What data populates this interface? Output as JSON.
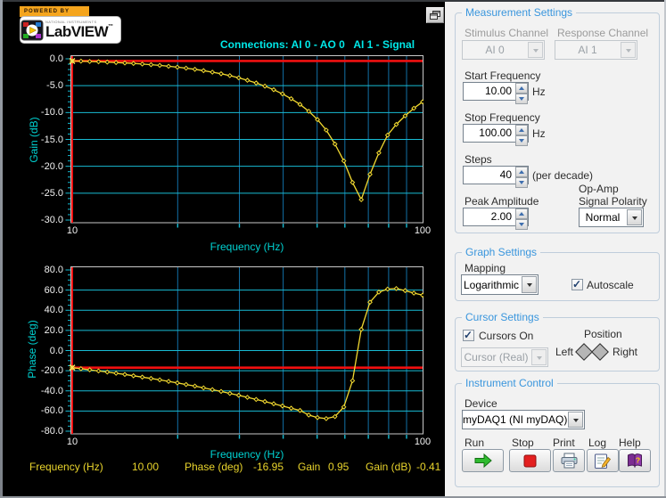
{
  "logo": {
    "powered_by": "POWERED BY",
    "brand_small": "NATIONAL INSTRUMENTS",
    "brand": "LabVIEW",
    "tm": "™"
  },
  "graph_title": "Connections: AI 0 - AO 0   AI 1 - Signal",
  "readout": {
    "freq_label": "Frequency (Hz)",
    "freq_value": "10.00",
    "phase_label": "Phase (deg)",
    "phase_value": "-16.95",
    "gain_label": "Gain",
    "gain_value": "0.95",
    "gain_db_label": "Gain (dB)",
    "gain_db_value": "-0.41"
  },
  "colors": {
    "grid_major": "#18bcd4",
    "grid_minor": "#1271a6",
    "frame": "#c9c9c9",
    "curve": "#f2d930",
    "cursor_red": "#f01010",
    "cross_yellow": "#ffe95c",
    "axis_text": "#f2f2f2",
    "cyan_label": "#00d2d2",
    "title_cyan": "#00e8e8",
    "readout_yellow": "#e9d42c",
    "panel_title_blue": "#3a96dd"
  },
  "chart_data": [
    {
      "type": "line",
      "name": "gain-bode-plot",
      "title": "Connections: AI 0 - AO 0   AI 1 - Signal",
      "xlabel": "Frequency (Hz)",
      "ylabel": "Gain (dB)",
      "xscale": "log",
      "xlim": [
        10,
        100
      ],
      "ylim": [
        -30,
        0
      ],
      "yticks": [
        0,
        -5,
        -10,
        -15,
        -20,
        -25,
        -30
      ],
      "ytick_labels": [
        "0.0",
        "-5.0",
        "-10.0",
        "-15.0",
        "-20.0",
        "-25.0",
        "-30.0"
      ],
      "ytick_minor_step": 1,
      "xticks": [
        10,
        100
      ],
      "xtick_labels": [
        "10",
        "100"
      ],
      "xgrid": [
        20,
        30,
        40,
        50,
        60,
        70,
        80,
        90
      ],
      "ygrid": [
        -5,
        -10,
        -15,
        -20,
        -25
      ],
      "grid": true,
      "legend_position": "none",
      "cursor": {
        "x": 10,
        "y": -0.41
      },
      "series": [
        {
          "name": "Gain",
          "x": [
            10,
            10.59,
            11.22,
            11.89,
            12.59,
            13.34,
            14.13,
            14.96,
            15.85,
            16.79,
            17.78,
            18.84,
            19.95,
            21.13,
            22.39,
            23.71,
            25.12,
            26.61,
            28.18,
            29.85,
            31.62,
            33.5,
            35.48,
            37.58,
            39.81,
            42.17,
            44.67,
            47.32,
            50.12,
            53.09,
            56.23,
            59.57,
            63.1,
            66.83,
            70.79,
            74.99,
            79.43,
            84.14,
            89.13,
            94.41,
            100
          ],
          "y": [
            -0.41,
            -0.43,
            -0.49,
            -0.55,
            -0.62,
            -0.7,
            -0.78,
            -0.87,
            -0.98,
            -1.1,
            -1.23,
            -1.39,
            -1.55,
            -1.74,
            -1.96,
            -2.2,
            -2.48,
            -2.79,
            -3.14,
            -3.54,
            -3.99,
            -4.5,
            -5.09,
            -5.75,
            -6.53,
            -7.43,
            -8.49,
            -9.76,
            -11.31,
            -13.26,
            -15.87,
            -19.0,
            -23.0,
            -26.2,
            -21.5,
            -17.5,
            -14.2,
            -12.2,
            -10.6,
            -9.2,
            -8.0
          ]
        }
      ]
    },
    {
      "type": "line",
      "name": "phase-bode-plot",
      "title": "",
      "xlabel": "Frequency (Hz)",
      "ylabel": "Phase (deg)",
      "xscale": "log",
      "xlim": [
        10,
        100
      ],
      "ylim": [
        -80,
        80
      ],
      "yticks": [
        80,
        60,
        40,
        20,
        0,
        -20,
        -40,
        -60,
        -80
      ],
      "ytick_labels": [
        "80.0",
        "60.0",
        "40.0",
        "20.0",
        "0.0",
        "-20.0",
        "-40.0",
        "-60.0",
        "-80.0"
      ],
      "ytick_minor_step": 5,
      "xticks": [
        10,
        100
      ],
      "xtick_labels": [
        "10",
        "100"
      ],
      "xgrid": [
        20,
        30,
        40,
        50,
        60,
        70,
        80,
        90
      ],
      "ygrid": [
        60,
        40,
        20,
        0,
        -20,
        -40,
        -60
      ],
      "grid": true,
      "legend_position": "none",
      "cursor": {
        "x": 10,
        "y": -16.95
      },
      "series": [
        {
          "name": "Phase",
          "x": [
            10,
            10.59,
            11.22,
            11.89,
            12.59,
            13.34,
            14.13,
            14.96,
            15.85,
            16.79,
            17.78,
            18.84,
            19.95,
            21.13,
            22.39,
            23.71,
            25.12,
            26.61,
            28.18,
            29.85,
            31.62,
            33.5,
            35.48,
            37.58,
            39.81,
            42.17,
            44.67,
            47.32,
            50.12,
            53.09,
            56.23,
            59.57,
            63.1,
            66.83,
            70.79,
            74.99,
            79.43,
            84.14,
            89.13,
            94.41,
            100
          ],
          "y": [
            -16.95,
            -18.0,
            -19.1,
            -20.2,
            -21.3,
            -22.5,
            -23.7,
            -25.0,
            -26.3,
            -27.7,
            -29.1,
            -30.6,
            -32.1,
            -33.7,
            -35.3,
            -37.0,
            -38.8,
            -40.6,
            -42.5,
            -44.4,
            -46.4,
            -48.5,
            -50.6,
            -52.8,
            -55.0,
            -57.2,
            -59.4,
            -64.0,
            -66.5,
            -67.5,
            -65.5,
            -56.0,
            -30.0,
            21.0,
            48.0,
            58.0,
            61.0,
            61.5,
            59.5,
            57.0,
            55.0
          ]
        }
      ]
    }
  ],
  "panel": {
    "measurement": {
      "title": "Measurement Settings",
      "stimulus_label": "Stimulus Channel",
      "stimulus_value": "AI 0",
      "response_label": "Response Channel",
      "response_value": "AI 1",
      "start_label": "Start Frequency",
      "start_value": "10.00",
      "start_unit": "Hz",
      "stop_label": "Stop Frequency",
      "stop_value": "100.00",
      "stop_unit": "Hz",
      "steps_label": "Steps",
      "steps_value": "40",
      "steps_unit": "(per decade)",
      "peak_label": "Peak Amplitude",
      "peak_value": "2.00",
      "opamp_label_1": "Op-Amp",
      "opamp_label_2": "Signal Polarity",
      "opamp_value": "Normal"
    },
    "graph": {
      "title": "Graph Settings",
      "mapping_label": "Mapping",
      "mapping_value": "Logarithmic",
      "autoscale_label": "Autoscale",
      "autoscale_checked": true
    },
    "cursor": {
      "title": "Cursor Settings",
      "cursors_on_label": "Cursors On",
      "cursors_on_checked": true,
      "cursor_select_value": "Cursor (Real)",
      "position_label": "Position",
      "left_label": "Left",
      "right_label": "Right"
    },
    "instrument": {
      "title": "Instrument Control",
      "device_label": "Device",
      "device_value": "myDAQ1 (NI myDAQ)",
      "run_label": "Run",
      "stop_label": "Stop",
      "print_label": "Print",
      "log_label": "Log",
      "help_label": "Help"
    }
  }
}
